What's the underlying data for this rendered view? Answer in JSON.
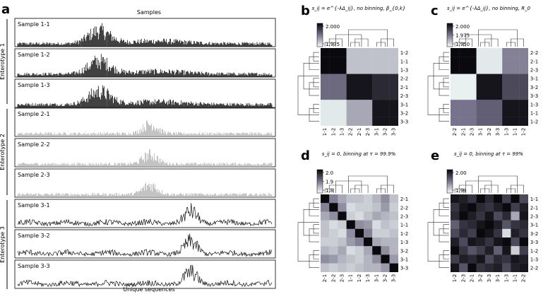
{
  "figure": {
    "panel_letters": {
      "a": "a",
      "b": "b",
      "c": "c",
      "d": "d",
      "e": "e"
    },
    "panel_a": {
      "title": "Samples",
      "xlabel": "Unique sequences",
      "groups": [
        {
          "label": "Enterotype 1",
          "color": "#111111",
          "style": "bars-center-left",
          "samples": [
            "Sample 1-1",
            "Sample 1-2",
            "Sample 1-3"
          ]
        },
        {
          "label": "Enterotype 2",
          "color": "#b5b5b5",
          "style": "bars-center",
          "samples": [
            "Sample 2-1",
            "Sample 2-2",
            "Sample 2-3"
          ]
        },
        {
          "label": "Enterotype 3",
          "color": "#111111",
          "style": "line-right",
          "samples": [
            "Sample 3-1",
            "Sample 3-2",
            "Sample 3-3"
          ]
        }
      ]
    },
    "heatmaps": [
      {
        "letter": "b",
        "title": "s_ij = e^{-λΔ_ij}, no binning, β_{0,k}",
        "cbar_ticks": [
          "2.000",
          "1.975"
        ],
        "row_labels": [
          "1-2",
          "1-1",
          "1-3",
          "2-2",
          "2-1",
          "2-3",
          "3-1",
          "3-2",
          "3-3"
        ],
        "col_labels": [
          "1-1",
          "1-2",
          "1-3",
          "2-2",
          "2-1",
          "2-3",
          "3-1",
          "3-2",
          "3-3"
        ],
        "matrix": [
          [
            0.0,
            0.0,
            0.0,
            0.8,
            0.8,
            0.8,
            0.8,
            0.8,
            0.8
          ],
          [
            0.0,
            0.0,
            0.0,
            0.8,
            0.8,
            0.8,
            0.8,
            0.8,
            0.8
          ],
          [
            0.0,
            0.0,
            0.0,
            0.8,
            0.8,
            0.8,
            0.8,
            0.8,
            0.8
          ],
          [
            0.45,
            0.45,
            0.45,
            0.05,
            0.05,
            0.05,
            0.15,
            0.15,
            0.15
          ],
          [
            0.45,
            0.45,
            0.45,
            0.05,
            0.05,
            0.05,
            0.15,
            0.15,
            0.15
          ],
          [
            0.45,
            0.45,
            0.45,
            0.05,
            0.05,
            0.05,
            0.15,
            0.15,
            0.15
          ],
          [
            0.95,
            0.95,
            0.95,
            0.7,
            0.7,
            0.7,
            0.05,
            0.05,
            0.05
          ],
          [
            0.95,
            0.95,
            0.95,
            0.7,
            0.7,
            0.7,
            0.05,
            0.05,
            0.05
          ],
          [
            0.95,
            0.95,
            0.95,
            0.7,
            0.7,
            0.7,
            0.05,
            0.05,
            0.05
          ]
        ]
      },
      {
        "letter": "c",
        "title": "s_ij = e^{-λΔ_ij}, no binning, R_0",
        "cbar_ticks": [
          "2.000",
          "1.975",
          "1.950"
        ],
        "row_labels": [
          "2-2",
          "2-1",
          "2-3",
          "3-1",
          "3-2",
          "3-3",
          "1-3",
          "1-1",
          "1-2"
        ],
        "col_labels": [
          "2-2",
          "2-1",
          "2-3",
          "3-1",
          "3-2",
          "3-3",
          "1-3",
          "1-1",
          "1-2"
        ],
        "matrix": [
          [
            0.0,
            0.0,
            0.0,
            0.95,
            0.95,
            0.95,
            0.55,
            0.55,
            0.55
          ],
          [
            0.0,
            0.0,
            0.0,
            0.95,
            0.95,
            0.95,
            0.55,
            0.55,
            0.55
          ],
          [
            0.0,
            0.0,
            0.0,
            0.95,
            0.95,
            0.95,
            0.55,
            0.55,
            0.55
          ],
          [
            0.98,
            0.98,
            0.98,
            0.05,
            0.05,
            0.05,
            0.3,
            0.3,
            0.3
          ],
          [
            0.98,
            0.98,
            0.98,
            0.05,
            0.05,
            0.05,
            0.3,
            0.3,
            0.3
          ],
          [
            0.98,
            0.98,
            0.98,
            0.05,
            0.05,
            0.05,
            0.3,
            0.3,
            0.3
          ],
          [
            0.5,
            0.5,
            0.5,
            0.4,
            0.4,
            0.4,
            0.05,
            0.05,
            0.05
          ],
          [
            0.5,
            0.5,
            0.5,
            0.4,
            0.4,
            0.4,
            0.05,
            0.05,
            0.05
          ],
          [
            0.5,
            0.5,
            0.5,
            0.4,
            0.4,
            0.4,
            0.05,
            0.05,
            0.05
          ]
        ]
      },
      {
        "letter": "d",
        "title": "s_ij = 0, binning at τ = 99.9%",
        "cbar_ticks": [
          "2.0",
          "1.9",
          "1.8"
        ],
        "row_labels": [
          "2-1",
          "2-2",
          "2-3",
          "1-1",
          "1-2",
          "1-3",
          "3-2",
          "3-1",
          "3-3"
        ],
        "col_labels": [
          "2-1",
          "2-2",
          "2-3",
          "1-1",
          "1-2",
          "1-3",
          "3-1",
          "3-2",
          "3-3"
        ],
        "matrix": [
          [
            0.0,
            0.55,
            0.7,
            0.8,
            0.8,
            0.85,
            0.75,
            0.6,
            0.8
          ],
          [
            0.55,
            0.0,
            0.6,
            0.9,
            0.85,
            0.85,
            0.8,
            0.65,
            0.85
          ],
          [
            0.7,
            0.6,
            0.0,
            0.85,
            0.9,
            0.8,
            0.7,
            0.75,
            0.8
          ],
          [
            0.8,
            0.9,
            0.85,
            0.0,
            0.6,
            0.65,
            0.9,
            0.8,
            0.85
          ],
          [
            0.8,
            0.85,
            0.9,
            0.6,
            0.0,
            0.55,
            0.85,
            0.85,
            0.8
          ],
          [
            0.85,
            0.85,
            0.8,
            0.65,
            0.55,
            0.0,
            0.7,
            0.75,
            0.75
          ],
          [
            0.75,
            0.8,
            0.7,
            0.9,
            0.85,
            0.7,
            0.0,
            0.6,
            0.75
          ],
          [
            0.6,
            0.65,
            0.75,
            0.8,
            0.85,
            0.75,
            0.6,
            0.0,
            0.65
          ],
          [
            0.8,
            0.85,
            0.8,
            0.85,
            0.8,
            0.75,
            0.75,
            0.65,
            0.0
          ]
        ]
      },
      {
        "letter": "e",
        "title": "s_ij = 0, binning at τ = 99%",
        "cbar_ticks": [
          "2.00",
          "1.99"
        ],
        "row_labels": [
          "1-1",
          "2-1",
          "2-3",
          "3-1",
          "3-2",
          "3-3",
          "1-2",
          "1-3",
          "2-2"
        ],
        "col_labels": [
          "1-2",
          "2-3",
          "2-1",
          "3-2",
          "3-3",
          "3-1",
          "1-3",
          "1-1",
          "2-2"
        ],
        "matrix": [
          [
            0.05,
            0.1,
            0.2,
            0.0,
            0.15,
            0.0,
            0.25,
            0.0,
            0.3
          ],
          [
            0.2,
            0.05,
            0.0,
            0.15,
            0.2,
            0.1,
            0.0,
            0.25,
            0.1
          ],
          [
            0.15,
            0.0,
            0.1,
            0.2,
            0.05,
            0.3,
            0.15,
            0.7,
            0.05
          ],
          [
            0.4,
            0.2,
            0.15,
            0.05,
            0.0,
            0.1,
            0.35,
            0.2,
            0.15
          ],
          [
            0.3,
            0.15,
            0.25,
            0.0,
            0.05,
            0.2,
            0.9,
            0.1,
            0.2
          ],
          [
            0.1,
            0.3,
            0.05,
            0.1,
            0.2,
            0.05,
            0.0,
            0.3,
            0.0
          ],
          [
            0.0,
            0.2,
            0.35,
            0.25,
            0.1,
            0.4,
            0.05,
            0.85,
            0.25
          ],
          [
            0.25,
            0.1,
            0.15,
            0.05,
            0.3,
            0.15,
            0.2,
            0.05,
            0.1
          ],
          [
            0.05,
            0.35,
            0.0,
            0.2,
            0.15,
            0.1,
            0.3,
            0.1,
            0.05
          ]
        ]
      }
    ]
  }
}
